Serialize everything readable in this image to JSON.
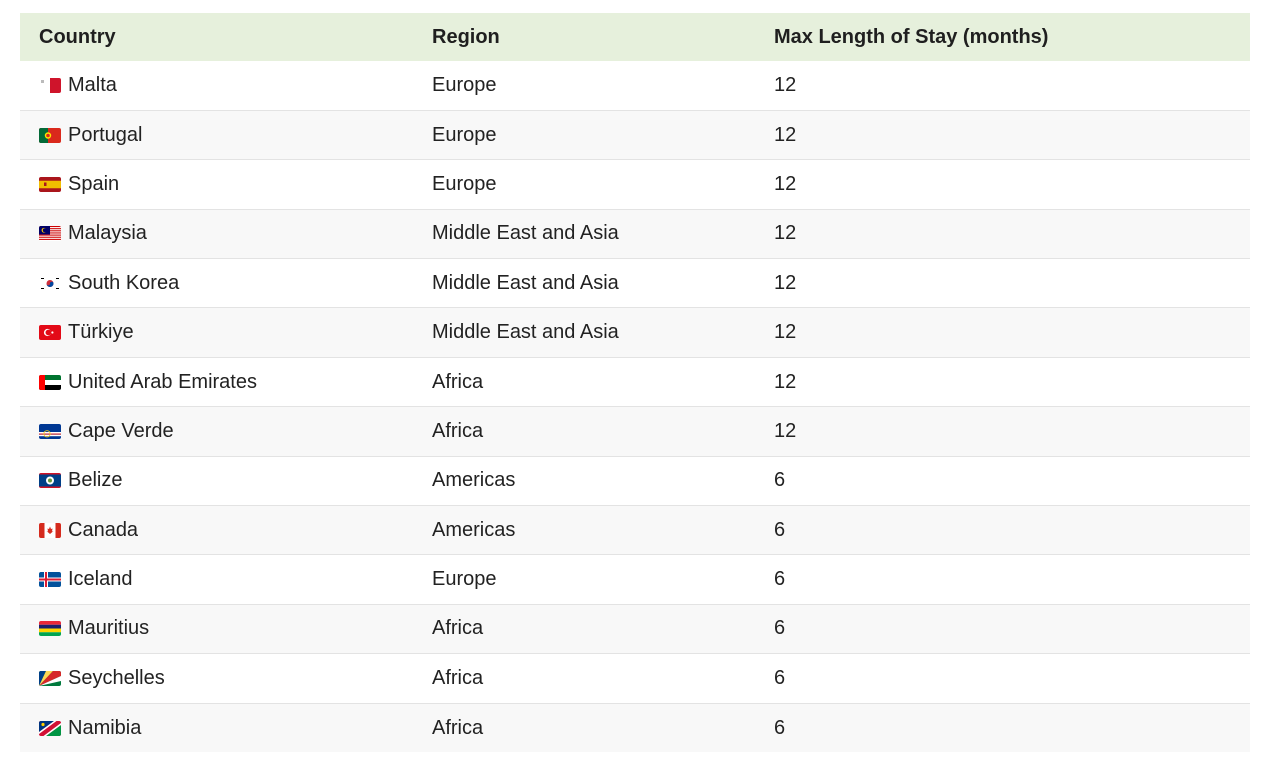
{
  "table": {
    "headers": {
      "country": "Country",
      "region": "Region",
      "max_stay": "Max Length of Stay (months)"
    },
    "rows": [
      {
        "flag": "malta-flag-icon",
        "country": "Malta",
        "region": "Europe",
        "max_stay": "12"
      },
      {
        "flag": "portugal-flag-icon",
        "country": "Portugal",
        "region": "Europe",
        "max_stay": "12"
      },
      {
        "flag": "spain-flag-icon",
        "country": "Spain",
        "region": "Europe",
        "max_stay": "12"
      },
      {
        "flag": "malaysia-flag-icon",
        "country": "Malaysia",
        "region": "Middle East and Asia",
        "max_stay": "12"
      },
      {
        "flag": "south-korea-flag-icon",
        "country": "South Korea",
        "region": "Middle East and Asia",
        "max_stay": "12"
      },
      {
        "flag": "turkiye-flag-icon",
        "country": "Türkiye",
        "region": "Middle East and Asia",
        "max_stay": "12"
      },
      {
        "flag": "uae-flag-icon",
        "country": "United Arab Emirates",
        "region": "Africa",
        "max_stay": "12"
      },
      {
        "flag": "cape-verde-flag-icon",
        "country": "Cape Verde",
        "region": "Africa",
        "max_stay": "12"
      },
      {
        "flag": "belize-flag-icon",
        "country": "Belize",
        "region": "Americas",
        "max_stay": "6"
      },
      {
        "flag": "canada-flag-icon",
        "country": "Canada",
        "region": "Americas",
        "max_stay": "6"
      },
      {
        "flag": "iceland-flag-icon",
        "country": "Iceland",
        "region": "Europe",
        "max_stay": "6"
      },
      {
        "flag": "mauritius-flag-icon",
        "country": "Mauritius",
        "region": "Africa",
        "max_stay": "6"
      },
      {
        "flag": "seychelles-flag-icon",
        "country": "Seychelles",
        "region": "Africa",
        "max_stay": "6"
      },
      {
        "flag": "namibia-flag-icon",
        "country": "Namibia",
        "region": "Africa",
        "max_stay": "6"
      }
    ]
  },
  "colors": {
    "header_background": "#e6f0dc",
    "alt_row_background": "#f8f8f8",
    "row_divider": "#e3e3e3"
  }
}
